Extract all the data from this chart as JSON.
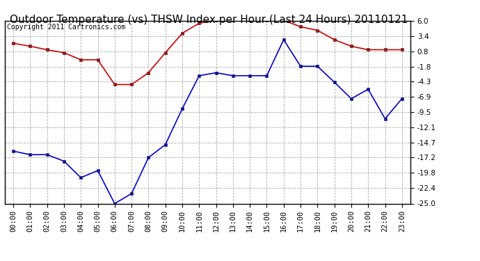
{
  "title": "Outdoor Temperature (vs) THSW Index per Hour (Last 24 Hours) 20110121",
  "copyright": "Copyright 2011 Cartronics.com",
  "hours": [
    "00:00",
    "01:00",
    "02:00",
    "03:00",
    "04:00",
    "05:00",
    "06:00",
    "07:00",
    "08:00",
    "09:00",
    "10:00",
    "11:00",
    "12:00",
    "13:00",
    "14:00",
    "15:00",
    "16:00",
    "17:00",
    "18:00",
    "19:00",
    "20:00",
    "21:00",
    "22:00",
    "23:00"
  ],
  "red_data": [
    2.2,
    1.7,
    1.1,
    0.6,
    -0.6,
    -0.6,
    -4.8,
    -4.8,
    -2.8,
    0.6,
    3.9,
    5.6,
    6.1,
    6.1,
    6.1,
    6.1,
    6.1,
    5.0,
    4.4,
    2.8,
    1.7,
    1.1,
    1.1,
    1.1
  ],
  "blue_data": [
    -16.1,
    -16.7,
    -16.7,
    -17.8,
    -20.6,
    -19.4,
    -25.0,
    -23.3,
    -17.2,
    -15.0,
    -8.9,
    -3.3,
    -2.8,
    -3.3,
    -3.3,
    -3.3,
    2.8,
    -1.7,
    -1.7,
    -4.4,
    -7.2,
    -5.6,
    -10.6,
    -7.2
  ],
  "ylim": [
    -25.0,
    6.0
  ],
  "yticks": [
    6.0,
    3.4,
    0.8,
    -1.8,
    -4.3,
    -6.9,
    -9.5,
    -12.1,
    -14.7,
    -17.2,
    -19.8,
    -22.4,
    -25.0
  ],
  "red_color": "#cc0000",
  "blue_color": "#0000cc",
  "grid_color": "#aaaaaa",
  "bg_color": "#ffffff",
  "title_fontsize": 11,
  "copyright_fontsize": 7,
  "tick_fontsize": 7.5
}
